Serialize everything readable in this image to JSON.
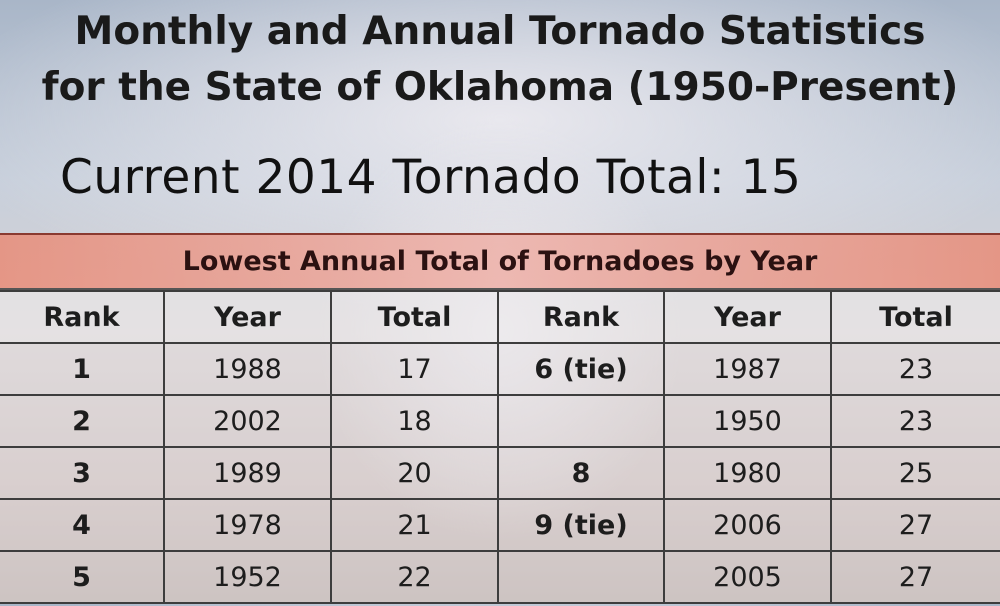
{
  "title": {
    "line1": "Monthly and Annual Tornado Statistics",
    "line2": "for the State of Oklahoma (1950-Present)"
  },
  "current_total": "Current 2014 Tornado Total: 15",
  "table": {
    "heading": "Lowest Annual Total of Tornadoes by Year",
    "columns": [
      "Rank",
      "Year",
      "Total",
      "Rank",
      "Year",
      "Total"
    ],
    "rows": [
      [
        "1",
        "1988",
        "17",
        "6 (tie)",
        "1987",
        "23"
      ],
      [
        "2",
        "2002",
        "18",
        "",
        "1950",
        "23"
      ],
      [
        "3",
        "1989",
        "20",
        "8",
        "1980",
        "25"
      ],
      [
        "4",
        "1978",
        "21",
        "9 (tie)",
        "2006",
        "27"
      ],
      [
        "5",
        "1952",
        "22",
        "",
        "2005",
        "27"
      ]
    ]
  }
}
